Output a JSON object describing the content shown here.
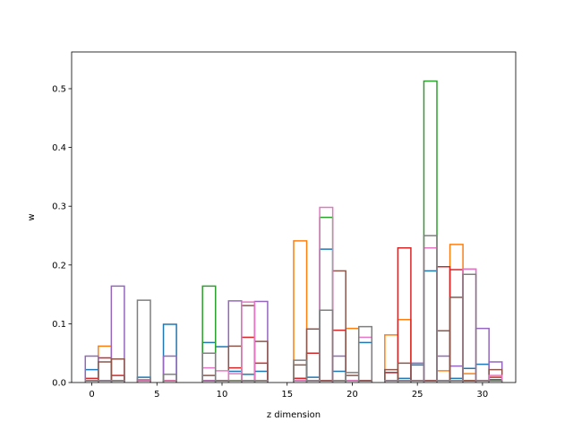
{
  "chart_data": {
    "type": "bar",
    "style": "step-outline histogram, 8 overlapping series",
    "title": "",
    "xlabel": "z dimension",
    "ylabel": "w",
    "xlim": [
      -1.55,
      32.55
    ],
    "ylim": [
      0,
      0.5625
    ],
    "xticks": [
      0,
      5,
      10,
      15,
      20,
      25,
      30
    ],
    "yticks": [
      0.0,
      0.1,
      0.2,
      0.3,
      0.4,
      0.5
    ],
    "xtick_labels": [
      "0",
      "5",
      "10",
      "15",
      "20",
      "25",
      "30"
    ],
    "ytick_labels": [
      "0.0",
      "0.1",
      "0.2",
      "0.3",
      "0.4",
      "0.5"
    ],
    "grid": false,
    "legend": "none",
    "x": [
      0,
      1,
      2,
      3,
      4,
      5,
      6,
      7,
      8,
      9,
      10,
      11,
      12,
      13,
      14,
      15,
      16,
      17,
      18,
      19,
      20,
      21,
      22,
      23,
      24,
      25,
      26,
      27,
      28,
      29,
      30,
      31
    ],
    "series": [
      {
        "color": "#1f77b4",
        "values": [
          0.022,
          0.003,
          0.003,
          0.0,
          0.009,
          0.0,
          0.099,
          0.0,
          0.0,
          0.068,
          0.061,
          0.019,
          0.014,
          0.019,
          0.0,
          0.0,
          0.007,
          0.009,
          0.227,
          0.019,
          0.0,
          0.068,
          0.0,
          0.017,
          0.007,
          0.03,
          0.19,
          0.003,
          0.007,
          0.024,
          0.031,
          0.005
        ]
      },
      {
        "color": "#ff7f0e",
        "values": [
          0.003,
          0.062,
          0.003,
          0.0,
          0.005,
          0.0,
          0.003,
          0.0,
          0.0,
          0.003,
          0.003,
          0.003,
          0.003,
          0.003,
          0.0,
          0.0,
          0.241,
          0.003,
          0.003,
          0.003,
          0.092,
          0.003,
          0.0,
          0.081,
          0.107,
          0.003,
          0.003,
          0.02,
          0.235,
          0.015,
          0.003,
          0.003
        ]
      },
      {
        "color": "#2ca02c",
        "values": [
          0.003,
          0.003,
          0.003,
          0.0,
          0.003,
          0.0,
          0.003,
          0.0,
          0.0,
          0.164,
          0.003,
          0.003,
          0.003,
          0.003,
          0.0,
          0.0,
          0.003,
          0.003,
          0.281,
          0.003,
          0.003,
          0.003,
          0.0,
          0.003,
          0.003,
          0.003,
          0.513,
          0.003,
          0.003,
          0.003,
          0.003,
          0.003
        ]
      },
      {
        "color": "#d62728",
        "values": [
          0.007,
          0.042,
          0.012,
          0.0,
          0.003,
          0.0,
          0.003,
          0.0,
          0.0,
          0.003,
          0.003,
          0.025,
          0.077,
          0.033,
          0.0,
          0.0,
          0.007,
          0.05,
          0.003,
          0.089,
          0.003,
          0.003,
          0.0,
          0.017,
          0.229,
          0.003,
          0.003,
          0.197,
          0.192,
          0.003,
          0.003,
          0.009
        ]
      },
      {
        "color": "#9467bd",
        "values": [
          0.045,
          0.003,
          0.164,
          0.0,
          0.003,
          0.0,
          0.045,
          0.0,
          0.0,
          0.003,
          0.003,
          0.139,
          0.003,
          0.138,
          0.0,
          0.0,
          0.003,
          0.003,
          0.003,
          0.045,
          0.003,
          0.003,
          0.0,
          0.003,
          0.003,
          0.033,
          0.003,
          0.045,
          0.028,
          0.193,
          0.092,
          0.035
        ]
      },
      {
        "color": "#8c564b",
        "values": [
          0.003,
          0.035,
          0.04,
          0.0,
          0.003,
          0.0,
          0.003,
          0.0,
          0.0,
          0.012,
          0.003,
          0.062,
          0.131,
          0.07,
          0.0,
          0.0,
          0.03,
          0.091,
          0.003,
          0.19,
          0.012,
          0.003,
          0.0,
          0.022,
          0.033,
          0.003,
          0.003,
          0.088,
          0.145,
          0.003,
          0.003,
          0.022
        ]
      },
      {
        "color": "#e377c2",
        "values": [
          0.003,
          0.003,
          0.003,
          0.0,
          0.003,
          0.0,
          0.003,
          0.0,
          0.0,
          0.025,
          0.02,
          0.015,
          0.137,
          0.003,
          0.0,
          0.0,
          0.003,
          0.003,
          0.298,
          0.003,
          0.003,
          0.077,
          0.0,
          0.003,
          0.003,
          0.003,
          0.229,
          0.003,
          0.003,
          0.193,
          0.003,
          0.012
        ]
      },
      {
        "color": "#7f7f7f",
        "values": [
          0.003,
          0.003,
          0.003,
          0.0,
          0.14,
          0.0,
          0.014,
          0.0,
          0.0,
          0.05,
          0.003,
          0.003,
          0.003,
          0.003,
          0.0,
          0.0,
          0.038,
          0.003,
          0.123,
          0.003,
          0.017,
          0.095,
          0.0,
          0.003,
          0.003,
          0.003,
          0.25,
          0.003,
          0.003,
          0.184,
          0.003,
          0.003
        ]
      }
    ]
  }
}
